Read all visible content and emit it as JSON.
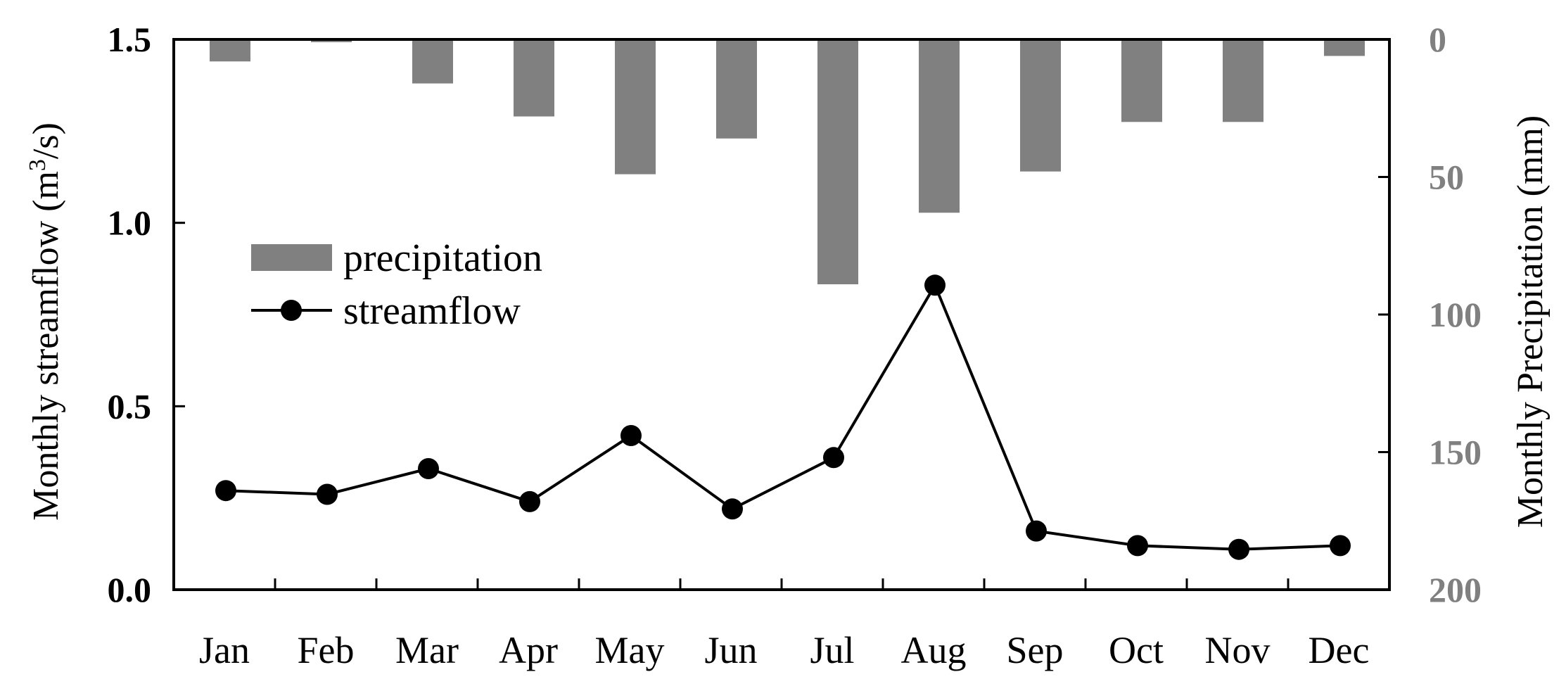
{
  "chart_data": {
    "type": "bar+line",
    "categories": [
      "Jan",
      "Feb",
      "Mar",
      "Apr",
      "May",
      "Jun",
      "Jul",
      "Aug",
      "Sep",
      "Oct",
      "Nov",
      "Dec"
    ],
    "series": [
      {
        "name": "precipitation",
        "type": "bar",
        "axis": "right",
        "inverted": true,
        "color": "#808080",
        "values": [
          8,
          1,
          16,
          28,
          49,
          36,
          89,
          63,
          48,
          30,
          30,
          6
        ]
      },
      {
        "name": "streamflow",
        "type": "line",
        "axis": "left",
        "color": "#000000",
        "marker": "circle",
        "values": [
          0.27,
          0.26,
          0.33,
          0.24,
          0.42,
          0.22,
          0.36,
          0.83,
          0.16,
          0.12,
          0.11,
          0.12
        ]
      }
    ],
    "left_axis": {
      "label_text": "Monthly streamflow (m",
      "label_sup": "3",
      "label_tail": "/s)",
      "ylim": [
        0,
        1.5
      ],
      "ticks": [
        0,
        0.5,
        1.0,
        1.5
      ],
      "tick_labels": [
        "0.0",
        "0.5",
        "1.0",
        "1.5"
      ]
    },
    "right_axis": {
      "label": "Monthly Precipitation (mm)",
      "ylim": [
        0,
        200
      ],
      "inverted": true,
      "ticks": [
        0,
        50,
        100,
        150,
        200
      ],
      "tick_labels": [
        "0",
        "50",
        "100",
        "150",
        "200"
      ],
      "color": "#808080"
    },
    "legend": {
      "placement": "upper-left",
      "entries": [
        "precipitation",
        "streamflow"
      ]
    },
    "grid": false
  }
}
